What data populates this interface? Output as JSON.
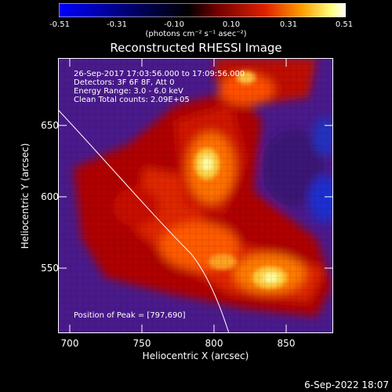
{
  "colorbar": {
    "ticks": [
      "-0.51",
      "-0.31",
      "-0.10",
      "0.10",
      "0.31",
      "0.51"
    ],
    "units": "(photons cm⁻² s⁻¹ asec⁻²)"
  },
  "title": "Reconstructed RHESSI Image",
  "info": {
    "line1": "26-Sep-2017 17:03:56.000 to 17:09:56.000",
    "line2": "Detectors: 3F 6F 8F, Att 0",
    "line3": "Energy Range: 3.0 - 6.0 keV",
    "line4": "Clean     Total counts: 2.09E+05"
  },
  "peak": "Position of Peak = [797,690]",
  "axes": {
    "xlabel": "Heliocentric X (arcsec)",
    "ylabel": "Heliocentric Y (arcsec)",
    "xticks": [
      "700",
      "750",
      "800",
      "850"
    ],
    "yticks": [
      "650",
      "600",
      "550"
    ]
  },
  "footer_date": "6-Sep-2022 18:07",
  "colors": {
    "cmap": [
      "#0000ff",
      "#000055",
      "#000000",
      "#aa0000",
      "#ff6a00",
      "#ffff88",
      "#ffffff"
    ],
    "bg_purple": "#4a1a8c"
  }
}
